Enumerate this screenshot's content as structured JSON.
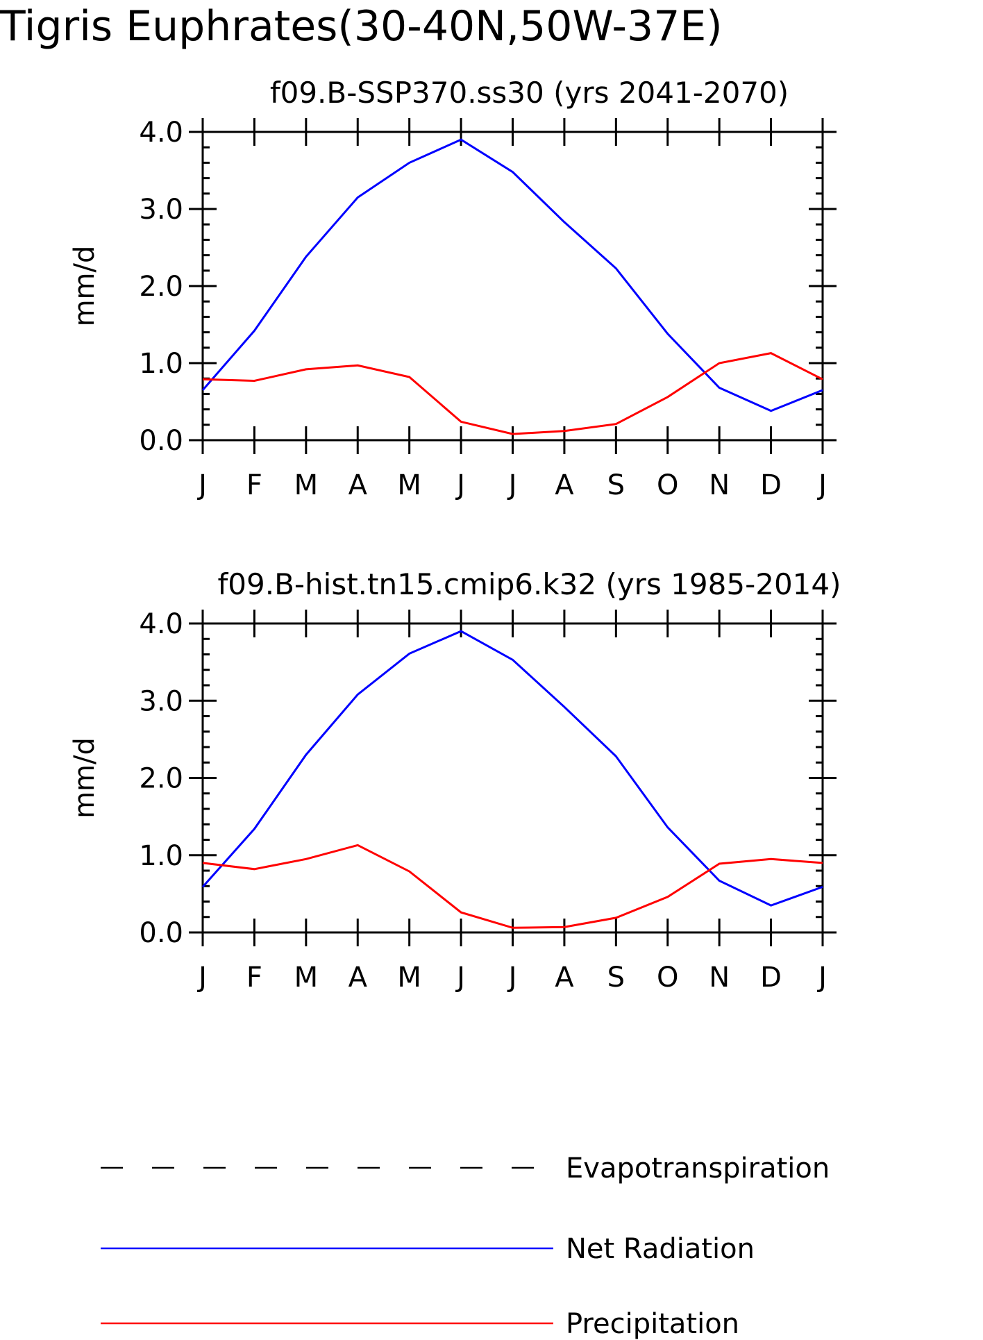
{
  "figure": {
    "title": "Tigris Euphrates(30-40N,50W-37E)"
  },
  "colors": {
    "Net Radiation": "#0000ff",
    "Precipitation": "#ff0000",
    "Evapotranspiration": "#000000"
  },
  "legend": [
    {
      "name": "Evapotranspiration",
      "color": "#000000",
      "style": "dashed"
    },
    {
      "name": "Net Radiation",
      "color": "#0000ff",
      "style": "solid"
    },
    {
      "name": "Precipitation",
      "color": "#ff0000",
      "style": "solid"
    }
  ],
  "chart_data": [
    {
      "type": "line",
      "title": "f09.B-SSP370.ss30 (yrs 2041-2070)",
      "ylabel": "mm/d",
      "xlabel": "",
      "categories": [
        "J",
        "F",
        "M",
        "A",
        "M",
        "J",
        "J",
        "A",
        "S",
        "O",
        "N",
        "D",
        "J"
      ],
      "ylim": [
        0,
        4
      ],
      "yticks": [
        "0.0",
        "1.0",
        "2.0",
        "3.0",
        "4.0"
      ],
      "grid": false,
      "series": [
        {
          "name": "Net Radiation",
          "color": "#0000ff",
          "values": [
            0.65,
            1.42,
            2.38,
            3.15,
            3.6,
            3.9,
            3.48,
            2.83,
            2.23,
            1.38,
            0.68,
            0.38,
            0.65
          ]
        },
        {
          "name": "Precipitation",
          "color": "#ff0000",
          "values": [
            0.79,
            0.77,
            0.92,
            0.97,
            0.82,
            0.24,
            0.08,
            0.12,
            0.21,
            0.56,
            1.0,
            1.13,
            0.79
          ]
        }
      ]
    },
    {
      "type": "line",
      "title": "f09.B-hist.tn15.cmip6.k32 (yrs 1985-2014)",
      "ylabel": "mm/d",
      "xlabel": "",
      "categories": [
        "J",
        "F",
        "M",
        "A",
        "M",
        "J",
        "J",
        "A",
        "S",
        "O",
        "N",
        "D",
        "J"
      ],
      "ylim": [
        0,
        4
      ],
      "yticks": [
        "0.0",
        "1.0",
        "2.0",
        "3.0",
        "4.0"
      ],
      "grid": false,
      "series": [
        {
          "name": "Net Radiation",
          "color": "#0000ff",
          "values": [
            0.59,
            1.34,
            2.3,
            3.08,
            3.61,
            3.9,
            3.53,
            2.92,
            2.28,
            1.36,
            0.67,
            0.35,
            0.59
          ]
        },
        {
          "name": "Precipitation",
          "color": "#ff0000",
          "values": [
            0.9,
            0.82,
            0.95,
            1.13,
            0.79,
            0.26,
            0.06,
            0.07,
            0.19,
            0.46,
            0.89,
            0.95,
            0.9
          ]
        }
      ]
    }
  ]
}
